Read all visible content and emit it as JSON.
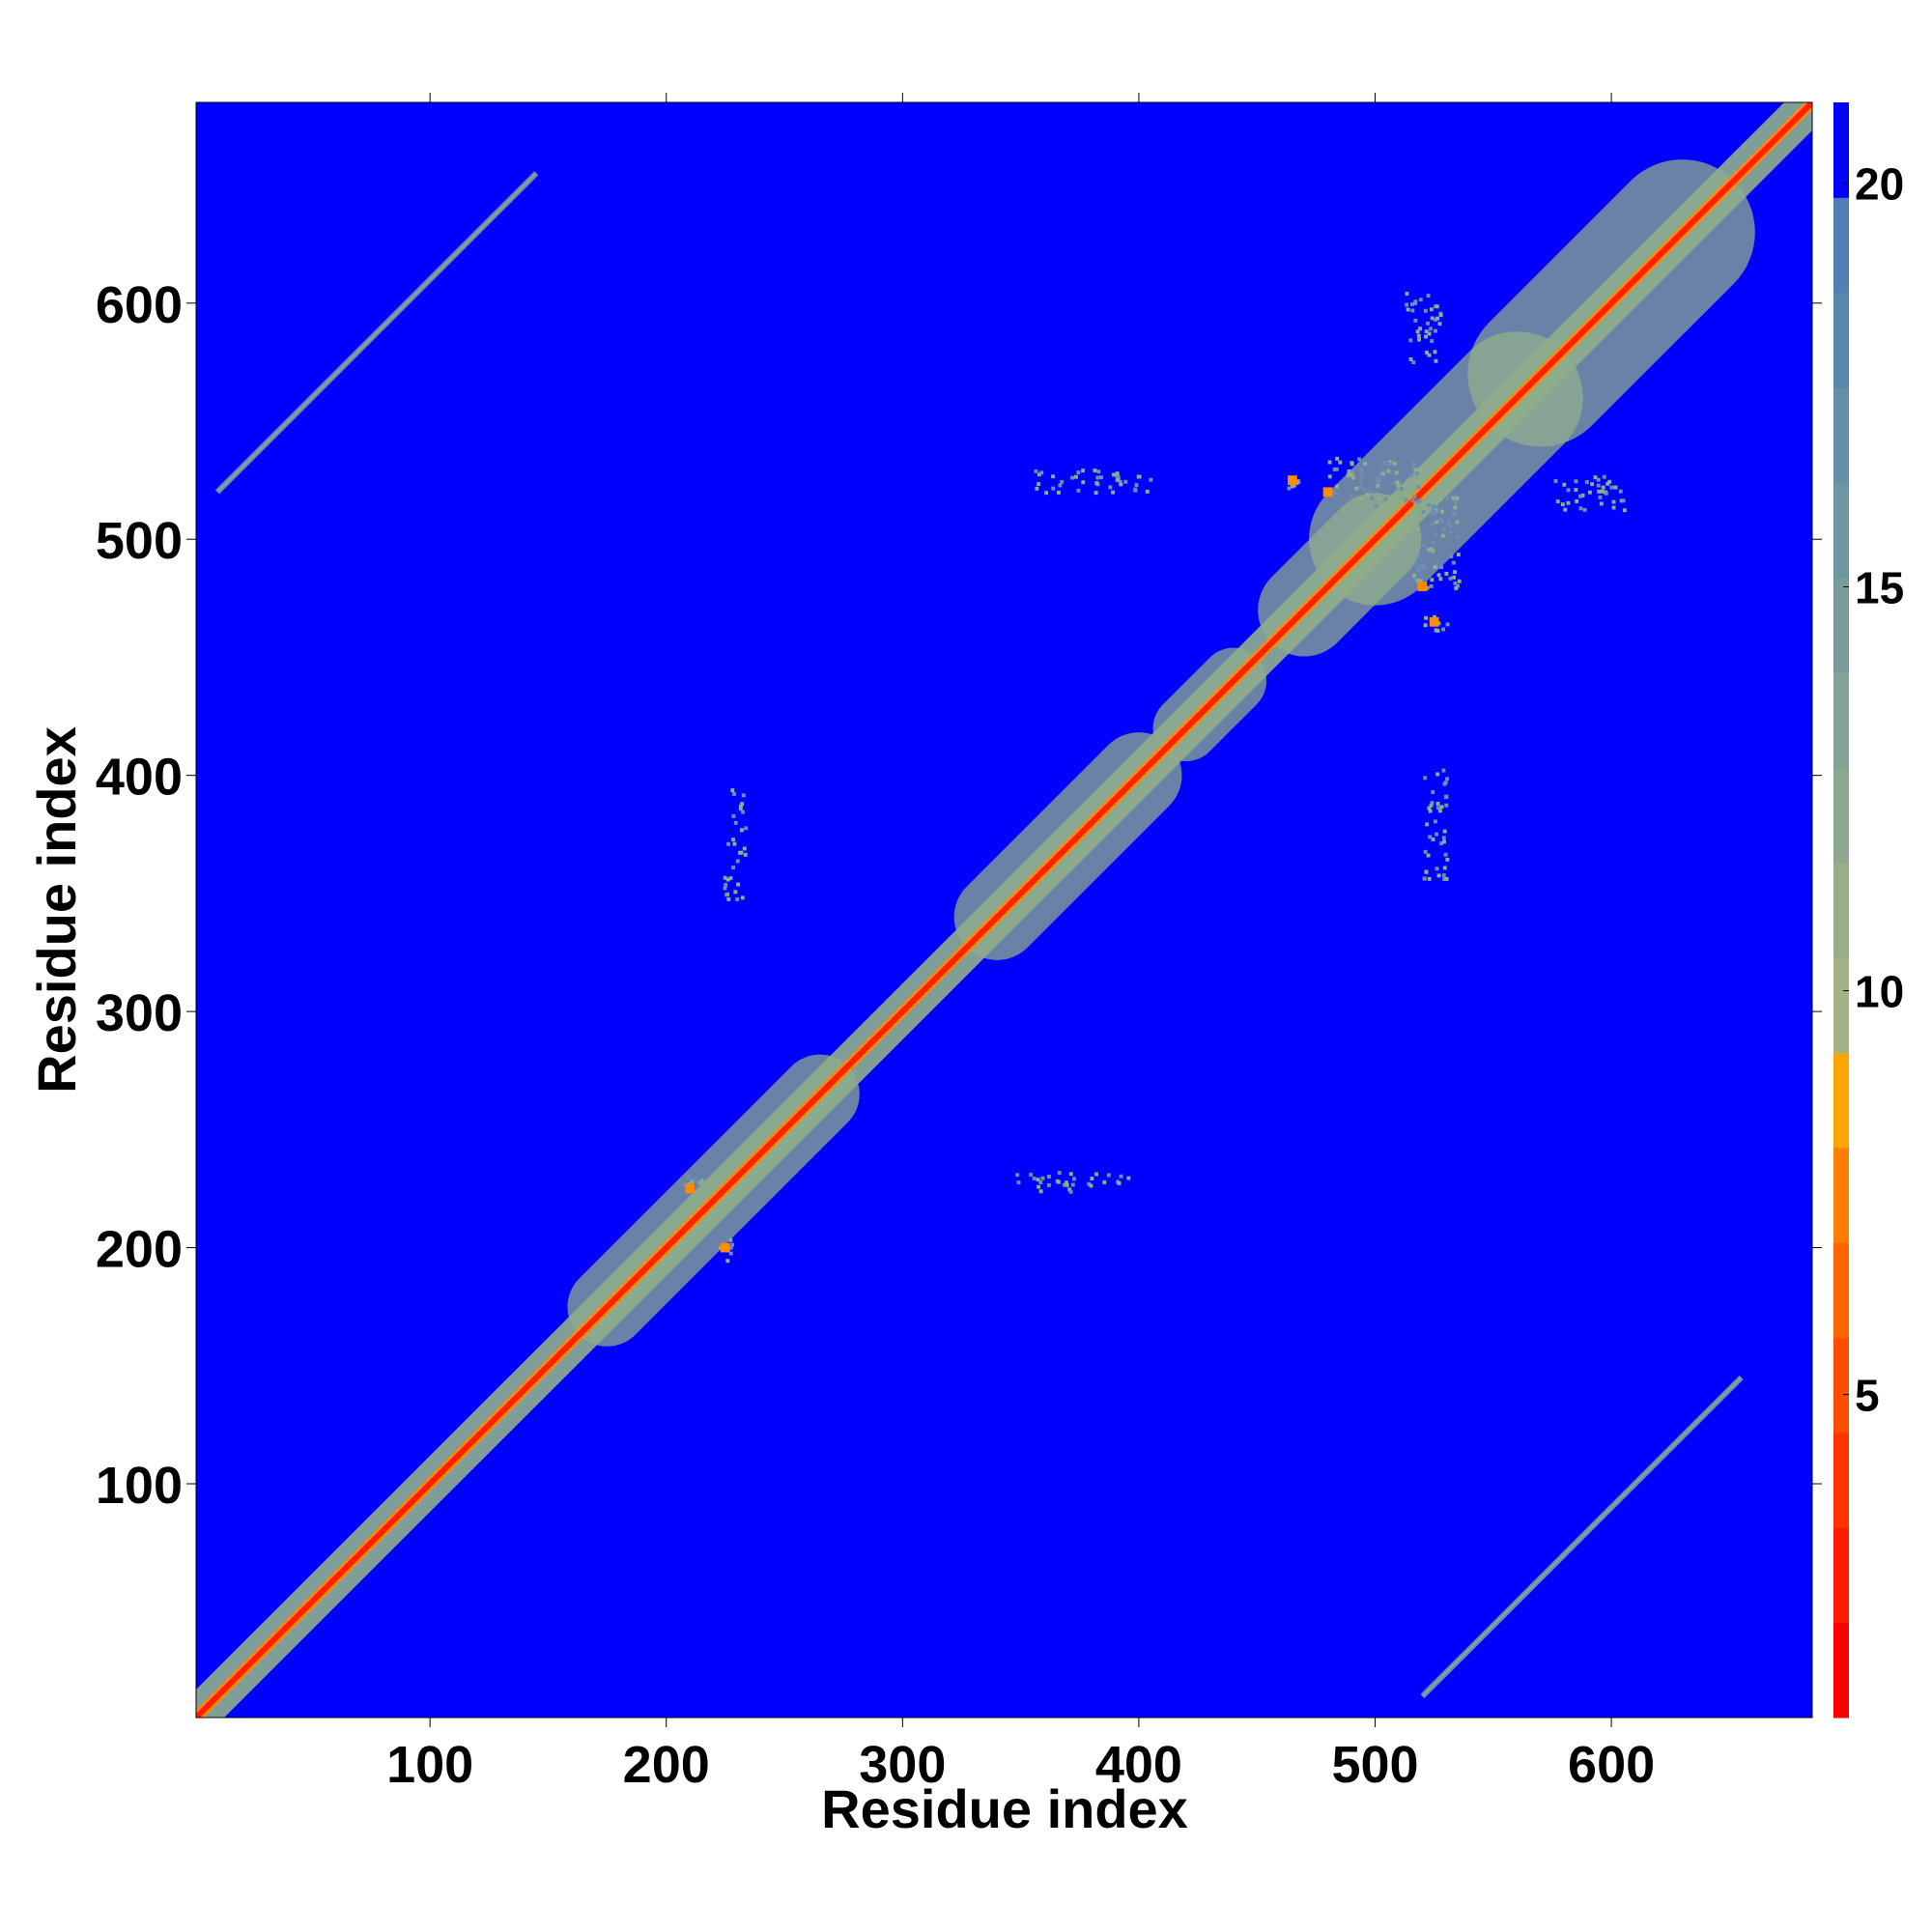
{
  "chart_data": {
    "type": "heatmap",
    "title": "",
    "xlabel": "Residue index",
    "ylabel": "Residue index",
    "xlim": [
      1,
      685
    ],
    "ylim": [
      1,
      685
    ],
    "x_ticks": [
      "100",
      "200",
      "300",
      "400",
      "500",
      "600"
    ],
    "y_ticks": [
      "100",
      "200",
      "300",
      "400",
      "500",
      "600"
    ],
    "colorbar": {
      "ticks": [
        "5",
        "10",
        "15",
        "20"
      ],
      "range": [
        1,
        21
      ],
      "band_colors": [
        "#ff0000",
        "#ff1a00",
        "#ff3300",
        "#ff4d00",
        "#ff6600",
        "#ff8000",
        "#ffa500",
        "#a4b386",
        "#9aae8a",
        "#8ea88f",
        "#84a295",
        "#799c9b",
        "#6e95a2",
        "#638fa8",
        "#5887ae",
        "#4f80b4",
        "#0000ff"
      ]
    },
    "background_color": "#0000ff",
    "diagonal_color": "#ff2000",
    "near_diagonal_color": "#8fae8c",
    "contact_color": "#6e8fb0",
    "description": "",
    "diagonal_segments": [
      {
        "from": 1,
        "to": 685,
        "halfwidth": 6
      },
      {
        "from": 175,
        "to": 265,
        "halfwidth": 12
      },
      {
        "from": 340,
        "to": 400,
        "halfwidth": 13
      },
      {
        "from": 420,
        "to": 440,
        "halfwidth": 10
      },
      {
        "from": 470,
        "to": 500,
        "halfwidth": 14
      },
      {
        "from": 500,
        "to": 560,
        "halfwidth": 20
      },
      {
        "from": 570,
        "to": 630,
        "halfwidth": 22
      }
    ],
    "off_diagonal_bands": [
      {
        "x_from": 10,
        "x_to": 145,
        "y_from": 520,
        "y_to": 655
      },
      {
        "x_from": 520,
        "x_to": 655,
        "y_from": 10,
        "y_to": 145
      }
    ],
    "contact_clusters": [
      {
        "x": 500,
        "y": 525,
        "w": 40,
        "h": 20
      },
      {
        "x": 525,
        "y": 500,
        "w": 20,
        "h": 40
      },
      {
        "x": 520,
        "y": 590,
        "w": 15,
        "h": 30
      },
      {
        "x": 590,
        "y": 520,
        "w": 30,
        "h": 15
      },
      {
        "x": 230,
        "y": 380,
        "w": 6,
        "h": 30
      },
      {
        "x": 380,
        "y": 230,
        "w": 30,
        "h": 6
      },
      {
        "x": 360,
        "y": 228,
        "w": 25,
        "h": 8
      },
      {
        "x": 228,
        "y": 360,
        "w": 8,
        "h": 25
      },
      {
        "x": 210,
        "y": 228,
        "w": 10,
        "h": 6
      },
      {
        "x": 225,
        "y": 200,
        "w": 6,
        "h": 12
      },
      {
        "x": 525,
        "y": 380,
        "w": 10,
        "h": 50
      },
      {
        "x": 380,
        "y": 525,
        "w": 50,
        "h": 10
      },
      {
        "x": 465,
        "y": 525,
        "w": 6,
        "h": 10
      },
      {
        "x": 525,
        "y": 465,
        "w": 12,
        "h": 6
      }
    ],
    "red_contacts": [
      {
        "x": 465,
        "y": 525
      },
      {
        "x": 525,
        "y": 465
      },
      {
        "x": 520,
        "y": 480
      },
      {
        "x": 480,
        "y": 520
      },
      {
        "x": 225,
        "y": 200
      },
      {
        "x": 210,
        "y": 225
      }
    ]
  }
}
